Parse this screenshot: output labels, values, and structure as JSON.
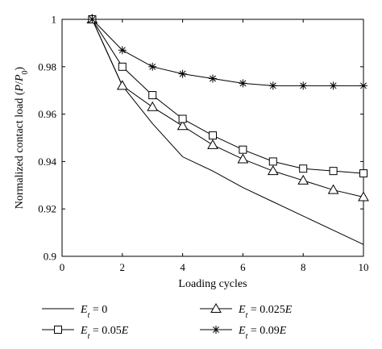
{
  "chart_data": {
    "type": "line",
    "xlabel": "Loading cycles",
    "ylabel": {
      "pre": "Normalized contact load (",
      "p": "P",
      "slash": "/",
      "p0": "P",
      "sub0": "0",
      "post": ")"
    },
    "xlim": [
      0,
      10
    ],
    "ylim": [
      0.9,
      1
    ],
    "xticks": [
      0,
      2,
      4,
      6,
      8,
      10
    ],
    "yticks": [
      0.9,
      0.92,
      0.94,
      0.96,
      0.98,
      1
    ],
    "xtick_labels": [
      "0",
      "2",
      "4",
      "6",
      "8",
      "10"
    ],
    "ytick_labels": [
      "0.9",
      "0.92",
      "0.94",
      "0.96",
      "0.98",
      "1"
    ],
    "grid": false,
    "legend_position": "bottom",
    "series": [
      {
        "name": "E_t = 0",
        "label": {
          "E": "E",
          "sub": "t",
          "rest": " = 0",
          "suffix": ""
        },
        "marker": "none",
        "x": [
          1,
          2,
          3,
          4,
          5,
          6,
          7,
          8,
          9,
          10
        ],
        "y": [
          1.0,
          0.972,
          0.956,
          0.942,
          0.936,
          0.929,
          0.923,
          0.917,
          0.911,
          0.905
        ]
      },
      {
        "name": "E_t = 0.025E",
        "label": {
          "E": "E",
          "sub": "t",
          "rest": " = 0.025",
          "suffix": "E"
        },
        "marker": "triangle",
        "x": [
          1,
          2,
          3,
          4,
          5,
          6,
          7,
          8,
          9,
          10
        ],
        "y": [
          1.0,
          0.972,
          0.963,
          0.955,
          0.947,
          0.941,
          0.936,
          0.932,
          0.928,
          0.925
        ]
      },
      {
        "name": "E_t = 0.05E",
        "label": {
          "E": "E",
          "sub": "t",
          "rest": " = 0.05",
          "suffix": "E"
        },
        "marker": "square",
        "x": [
          1,
          2,
          3,
          4,
          5,
          6,
          7,
          8,
          9,
          10
        ],
        "y": [
          1.0,
          0.98,
          0.968,
          0.958,
          0.951,
          0.945,
          0.94,
          0.937,
          0.936,
          0.935
        ]
      },
      {
        "name": "E_t = 0.09E",
        "label": {
          "E": "E",
          "sub": "t",
          "rest": " = 0.09",
          "suffix": "E"
        },
        "marker": "star",
        "x": [
          1,
          2,
          3,
          4,
          5,
          6,
          7,
          8,
          9,
          10
        ],
        "y": [
          1.0,
          0.987,
          0.98,
          0.977,
          0.975,
          0.973,
          0.972,
          0.972,
          0.972,
          0.972
        ]
      }
    ]
  }
}
